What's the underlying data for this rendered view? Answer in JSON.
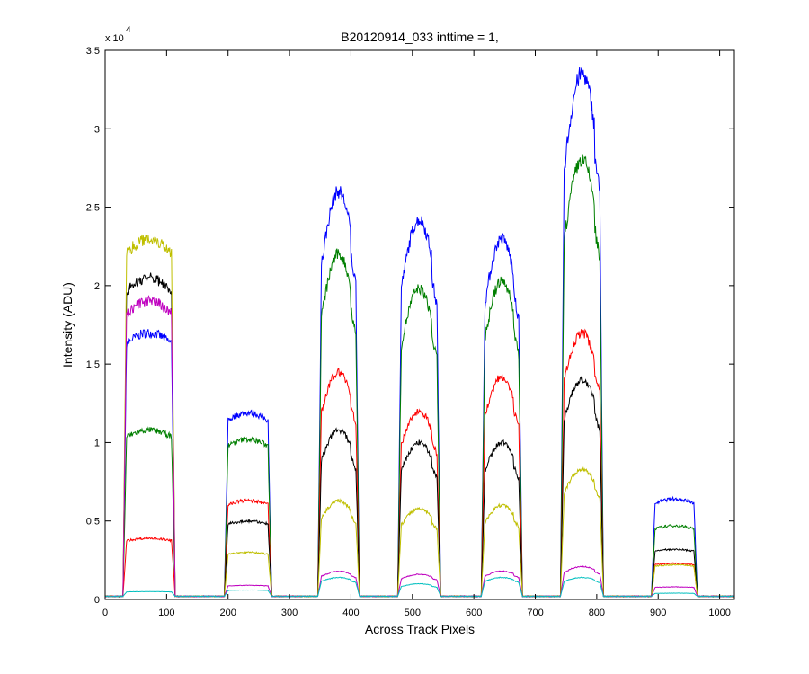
{
  "chart_data": {
    "type": "line",
    "title": "B20120914_033 inttime = 1,",
    "xlabel": "Across Track Pixels",
    "ylabel": "Intensity (ADU)",
    "y_exponent_label": "x 10",
    "y_exponent_power": "4",
    "xlim": [
      0,
      1024
    ],
    "ylim": [
      0,
      35000
    ],
    "xticks": [
      0,
      100,
      200,
      300,
      400,
      500,
      600,
      700,
      800,
      900,
      1000
    ],
    "yticks": [
      0,
      5000,
      10000,
      15000,
      20000,
      25000,
      30000,
      35000
    ],
    "ytick_labels": [
      "0",
      "0.5",
      "1",
      "1.5",
      "2",
      "2.5",
      "3",
      "3.5"
    ],
    "grid": false,
    "baseline": 200,
    "regions": [
      {
        "x": [
          35,
          108
        ]
      },
      {
        "x": [
          200,
          265
        ]
      },
      {
        "x": [
          352,
          408
        ]
      },
      {
        "x": [
          482,
          540
        ]
      },
      {
        "x": [
          618,
          673
        ]
      },
      {
        "x": [
          747,
          805
        ]
      },
      {
        "x": [
          895,
          958
        ]
      }
    ],
    "series": [
      {
        "color": "#0000ff",
        "peaks": [
          17000,
          11900,
          26000,
          24200,
          23000,
          33500,
          6400
        ],
        "shape": [
          "flat",
          "flat",
          "dome",
          "dome",
          "dome",
          "dome",
          "flat"
        ]
      },
      {
        "color": "#007f00",
        "peaks": [
          10800,
          10200,
          22000,
          19800,
          20300,
          28000,
          4700
        ],
        "shape": [
          "flat",
          "flat",
          "dome",
          "dome",
          "dome",
          "dome",
          "flat"
        ]
      },
      {
        "color": "#ff0000",
        "peaks": [
          3900,
          6300,
          14500,
          12000,
          14200,
          17000,
          2300
        ],
        "shape": [
          "flat",
          "flat",
          "dome",
          "dome",
          "dome",
          "dome",
          "flat"
        ]
      },
      {
        "color": "#000000",
        "peaks": [
          20500,
          5000,
          10800,
          10000,
          10000,
          14000,
          3200
        ],
        "shape": [
          "flat",
          "flat",
          "dome",
          "dome",
          "dome",
          "dome",
          "flat"
        ]
      },
      {
        "color": "#bfbf00",
        "peaks": [
          23000,
          3000,
          6300,
          5800,
          6000,
          8300,
          2200
        ],
        "shape": [
          "flat",
          "flat",
          "dome",
          "dome",
          "dome",
          "dome",
          "flat"
        ]
      },
      {
        "color": "#bf00bf",
        "peaks": [
          19000,
          900,
          1800,
          1600,
          1800,
          2100,
          800
        ],
        "shape": [
          "flat",
          "flat",
          "dome",
          "dome",
          "dome",
          "dome",
          "flat"
        ]
      },
      {
        "color": "#00bfbf",
        "peaks": [
          500,
          600,
          1400,
          1000,
          1400,
          1400,
          400
        ],
        "shape": [
          "flat",
          "flat",
          "dome",
          "dome",
          "dome",
          "dome",
          "flat"
        ]
      }
    ]
  }
}
